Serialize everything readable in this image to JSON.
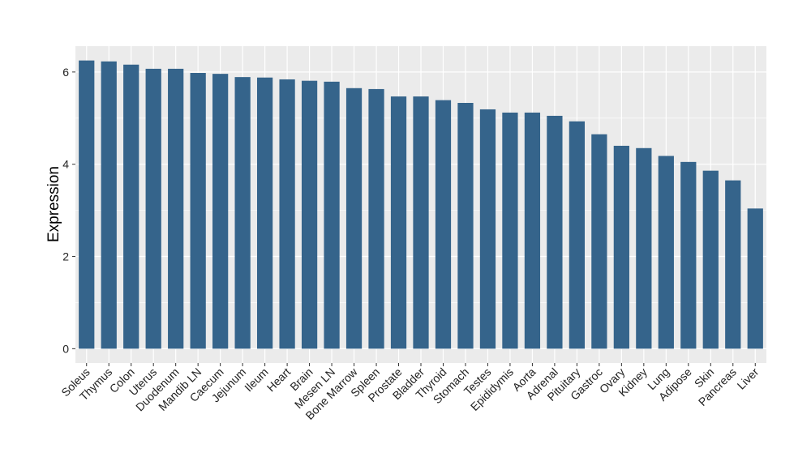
{
  "chart_data": {
    "type": "bar",
    "title": "",
    "xlabel": "",
    "ylabel": "Expression",
    "ylim": [
      -0.31,
      6.56
    ],
    "yticks": [
      0,
      2,
      4,
      6
    ],
    "grid": true,
    "bar_color": "#35648B",
    "panel_color": "#EBEBEB",
    "categories": [
      "Soleus",
      "Thymus",
      "Colon",
      "Uterus",
      "Duodenum",
      "Mandib LN",
      "Caecum",
      "Jejunum",
      "Ileum",
      "Heart",
      "Brain",
      "Mesen LN",
      "Bone Marrow",
      "Spleen",
      "Prostate",
      "Bladder",
      "Thyroid",
      "Stomach",
      "Testes",
      "Epididymis",
      "Aorta",
      "Adrenal",
      "Pituitary",
      "Gastroc",
      "Ovary",
      "Kidney",
      "Lung",
      "Adipose",
      "Skin",
      "Pancreas",
      "Liver"
    ],
    "values": [
      6.25,
      6.23,
      6.16,
      6.07,
      6.07,
      5.98,
      5.96,
      5.89,
      5.88,
      5.84,
      5.81,
      5.79,
      5.65,
      5.63,
      5.47,
      5.47,
      5.39,
      5.33,
      5.19,
      5.12,
      5.12,
      5.05,
      4.93,
      4.65,
      4.4,
      4.35,
      4.18,
      4.05,
      3.86,
      3.65,
      3.04
    ]
  }
}
